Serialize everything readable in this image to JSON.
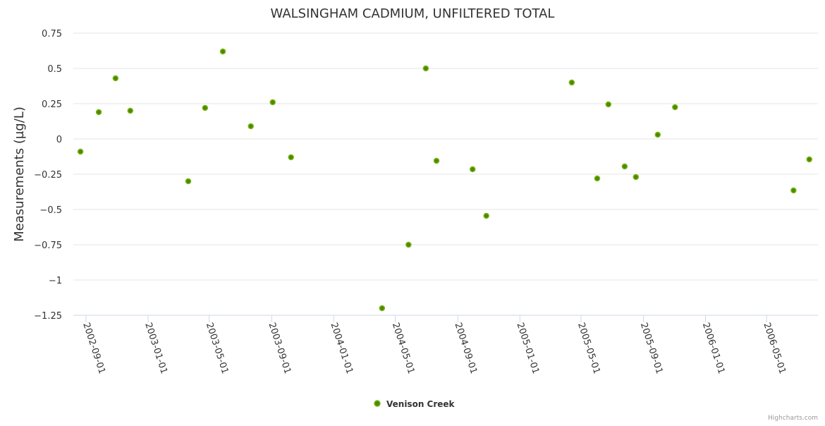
{
  "chart_data": {
    "type": "scatter",
    "title": "WALSINGHAM CADMIUM, UNFILTERED TOTAL",
    "xlabel": "",
    "ylabel": "Measurements (µg/L)",
    "ylim": [
      -1.25,
      0.75
    ],
    "yticks": [
      0.75,
      0.5,
      0.25,
      0,
      -0.25,
      -0.5,
      -0.75,
      -1,
      -1.25
    ],
    "ytick_labels": [
      "0.75",
      "0.5",
      "0.25",
      "0",
      "−0.25",
      "−0.5",
      "−0.75",
      "−1",
      "−1.25"
    ],
    "xlim": [
      "2002-08-07",
      "2006-08-10"
    ],
    "xticks": [
      "2002-09-01",
      "2003-01-01",
      "2003-05-01",
      "2003-09-01",
      "2004-01-01",
      "2004-05-01",
      "2004-09-01",
      "2005-01-01",
      "2005-05-01",
      "2005-09-01",
      "2006-01-01",
      "2006-05-01"
    ],
    "grid": true,
    "legend_position": "bottom-center",
    "series": [
      {
        "name": "Venison Creek",
        "color": "#7cb518",
        "points": [
          {
            "x": "2002-08-21",
            "y": -0.09
          },
          {
            "x": "2002-09-26",
            "y": 0.19
          },
          {
            "x": "2002-10-29",
            "y": 0.43
          },
          {
            "x": "2002-11-27",
            "y": 0.2
          },
          {
            "x": "2003-03-21",
            "y": -0.3
          },
          {
            "x": "2003-04-23",
            "y": 0.22
          },
          {
            "x": "2003-05-28",
            "y": 0.62
          },
          {
            "x": "2003-07-22",
            "y": 0.09
          },
          {
            "x": "2003-09-03",
            "y": 0.26
          },
          {
            "x": "2003-10-09",
            "y": -0.13
          },
          {
            "x": "2004-04-05",
            "y": -1.2
          },
          {
            "x": "2004-05-27",
            "y": -0.75
          },
          {
            "x": "2004-06-30",
            "y": 0.5
          },
          {
            "x": "2004-07-21",
            "y": -0.155
          },
          {
            "x": "2004-09-30",
            "y": -0.215
          },
          {
            "x": "2004-10-27",
            "y": -0.545
          },
          {
            "x": "2005-04-13",
            "y": 0.4
          },
          {
            "x": "2005-06-02",
            "y": -0.28
          },
          {
            "x": "2005-06-24",
            "y": 0.245
          },
          {
            "x": "2005-07-26",
            "y": -0.195
          },
          {
            "x": "2005-08-17",
            "y": -0.27
          },
          {
            "x": "2005-09-29",
            "y": 0.03
          },
          {
            "x": "2005-11-02",
            "y": 0.225
          },
          {
            "x": "2006-06-23",
            "y": -0.365
          },
          {
            "x": "2006-07-24",
            "y": -0.145
          }
        ]
      }
    ],
    "credits": "Highcharts.com"
  }
}
